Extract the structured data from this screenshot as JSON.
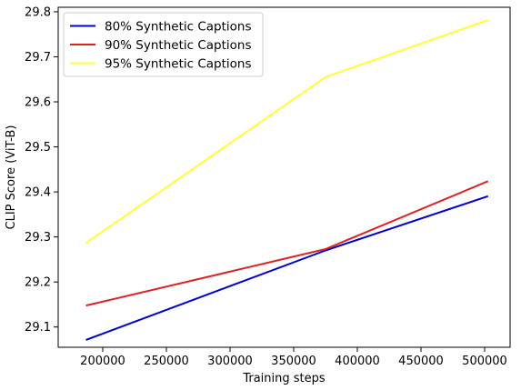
{
  "chart_data": {
    "type": "line",
    "xlabel": "Training steps",
    "ylabel": "CLIP Score (ViT-B)",
    "xlim": [
      165000,
      520000
    ],
    "ylim": [
      29.055,
      29.81
    ],
    "x_ticks": [
      200000,
      250000,
      300000,
      350000,
      400000,
      450000,
      500000
    ],
    "y_ticks": [
      29.1,
      29.2,
      29.3,
      29.4,
      29.5,
      29.6,
      29.7,
      29.8
    ],
    "x_tick_labels": [
      "200000",
      "250000",
      "300000",
      "350000",
      "400000",
      "450000",
      "500000"
    ],
    "y_tick_labels": [
      "29.1",
      "29.2",
      "29.3",
      "29.4",
      "29.5",
      "29.6",
      "29.7",
      "29.8"
    ],
    "grid": false,
    "legend_position": "top-left",
    "series": [
      {
        "name": "80% Synthetic Captions",
        "color": "#0000cc",
        "x": [
          187500,
          375000,
          502000
        ],
        "y": [
          29.072,
          29.27,
          29.39
        ]
      },
      {
        "name": "90% Synthetic Captions",
        "color": "#dd2222",
        "x": [
          187500,
          375000,
          502000
        ],
        "y": [
          29.148,
          29.273,
          29.423
        ]
      },
      {
        "name": "95% Synthetic Captions",
        "color": "#ffff33",
        "x": [
          187500,
          375000,
          502000
        ],
        "y": [
          29.288,
          29.655,
          29.781
        ]
      }
    ]
  }
}
